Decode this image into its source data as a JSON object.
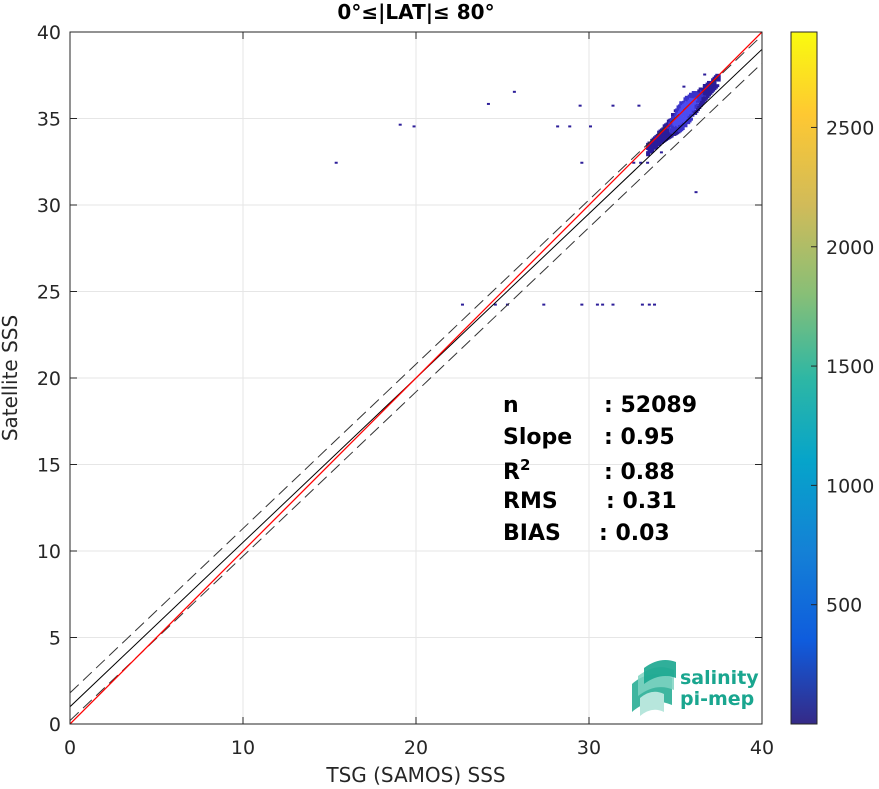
{
  "chart_data": {
    "type": "heatmap",
    "title": "0°≤|LAT|≤ 80°",
    "xlabel": "TSG (SAMOS) SSS",
    "ylabel": "Satellite SSS",
    "xlim": [
      0,
      40
    ],
    "ylim": [
      0,
      40
    ],
    "xticks": [
      0,
      10,
      20,
      30,
      40
    ],
    "yticks": [
      0,
      5,
      10,
      15,
      20,
      25,
      30,
      35,
      40
    ],
    "grid": true,
    "colorbar": {
      "colormap": "parula",
      "range": [
        0,
        2900
      ],
      "ticks": [
        500,
        1000,
        1500,
        2000,
        2500
      ]
    },
    "stats": [
      {
        "label": "n",
        "sup": "",
        "value": ": 52089"
      },
      {
        "label": "Slope",
        "sup": "",
        "value": ": 0.95"
      },
      {
        "label": "R",
        "sup": "2",
        "value": ": 0.88"
      },
      {
        "label": "RMS",
        "sup": "",
        "value": ": 0.31"
      },
      {
        "label": "BIAS",
        "sup": "",
        "value": ": 0.03"
      }
    ],
    "lines": {
      "one_to_one": {
        "color": "#ff0000",
        "slope": 1,
        "intercept": 0
      },
      "regression": {
        "color": "#000000",
        "slope": 0.95,
        "intercept": 1.0
      },
      "regression_band_offset": 0.8
    },
    "cluster": {
      "x_range": [
        33.3,
        37.4
      ],
      "y_center_offset": 0,
      "y_spread": 0.55
    },
    "scatter_points": [
      {
        "x": 15.3,
        "y": 32.5
      },
      {
        "x": 19.0,
        "y": 34.7
      },
      {
        "x": 19.8,
        "y": 34.6
      },
      {
        "x": 24.1,
        "y": 35.9
      },
      {
        "x": 25.6,
        "y": 36.6
      },
      {
        "x": 28.1,
        "y": 34.6
      },
      {
        "x": 28.8,
        "y": 34.6
      },
      {
        "x": 29.4,
        "y": 35.8
      },
      {
        "x": 29.5,
        "y": 32.5
      },
      {
        "x": 30.0,
        "y": 34.6
      },
      {
        "x": 31.3,
        "y": 35.8
      },
      {
        "x": 32.8,
        "y": 35.8
      },
      {
        "x": 22.6,
        "y": 24.3
      },
      {
        "x": 24.5,
        "y": 24.3
      },
      {
        "x": 25.2,
        "y": 24.3
      },
      {
        "x": 27.3,
        "y": 24.3
      },
      {
        "x": 29.5,
        "y": 24.3
      },
      {
        "x": 30.4,
        "y": 24.3
      },
      {
        "x": 30.7,
        "y": 24.3
      },
      {
        "x": 31.3,
        "y": 24.3
      },
      {
        "x": 33.0,
        "y": 24.3
      },
      {
        "x": 33.4,
        "y": 24.3
      },
      {
        "x": 33.7,
        "y": 24.3
      },
      {
        "x": 32.5,
        "y": 32.5
      },
      {
        "x": 32.9,
        "y": 32.5
      },
      {
        "x": 33.3,
        "y": 32.5
      },
      {
        "x": 36.1,
        "y": 30.8
      },
      {
        "x": 35.4,
        "y": 36.9
      },
      {
        "x": 36.6,
        "y": 37.6
      },
      {
        "x": 34.1,
        "y": 33.1
      }
    ],
    "logo": {
      "line1": "salinity",
      "line2": "pi-mep"
    }
  }
}
